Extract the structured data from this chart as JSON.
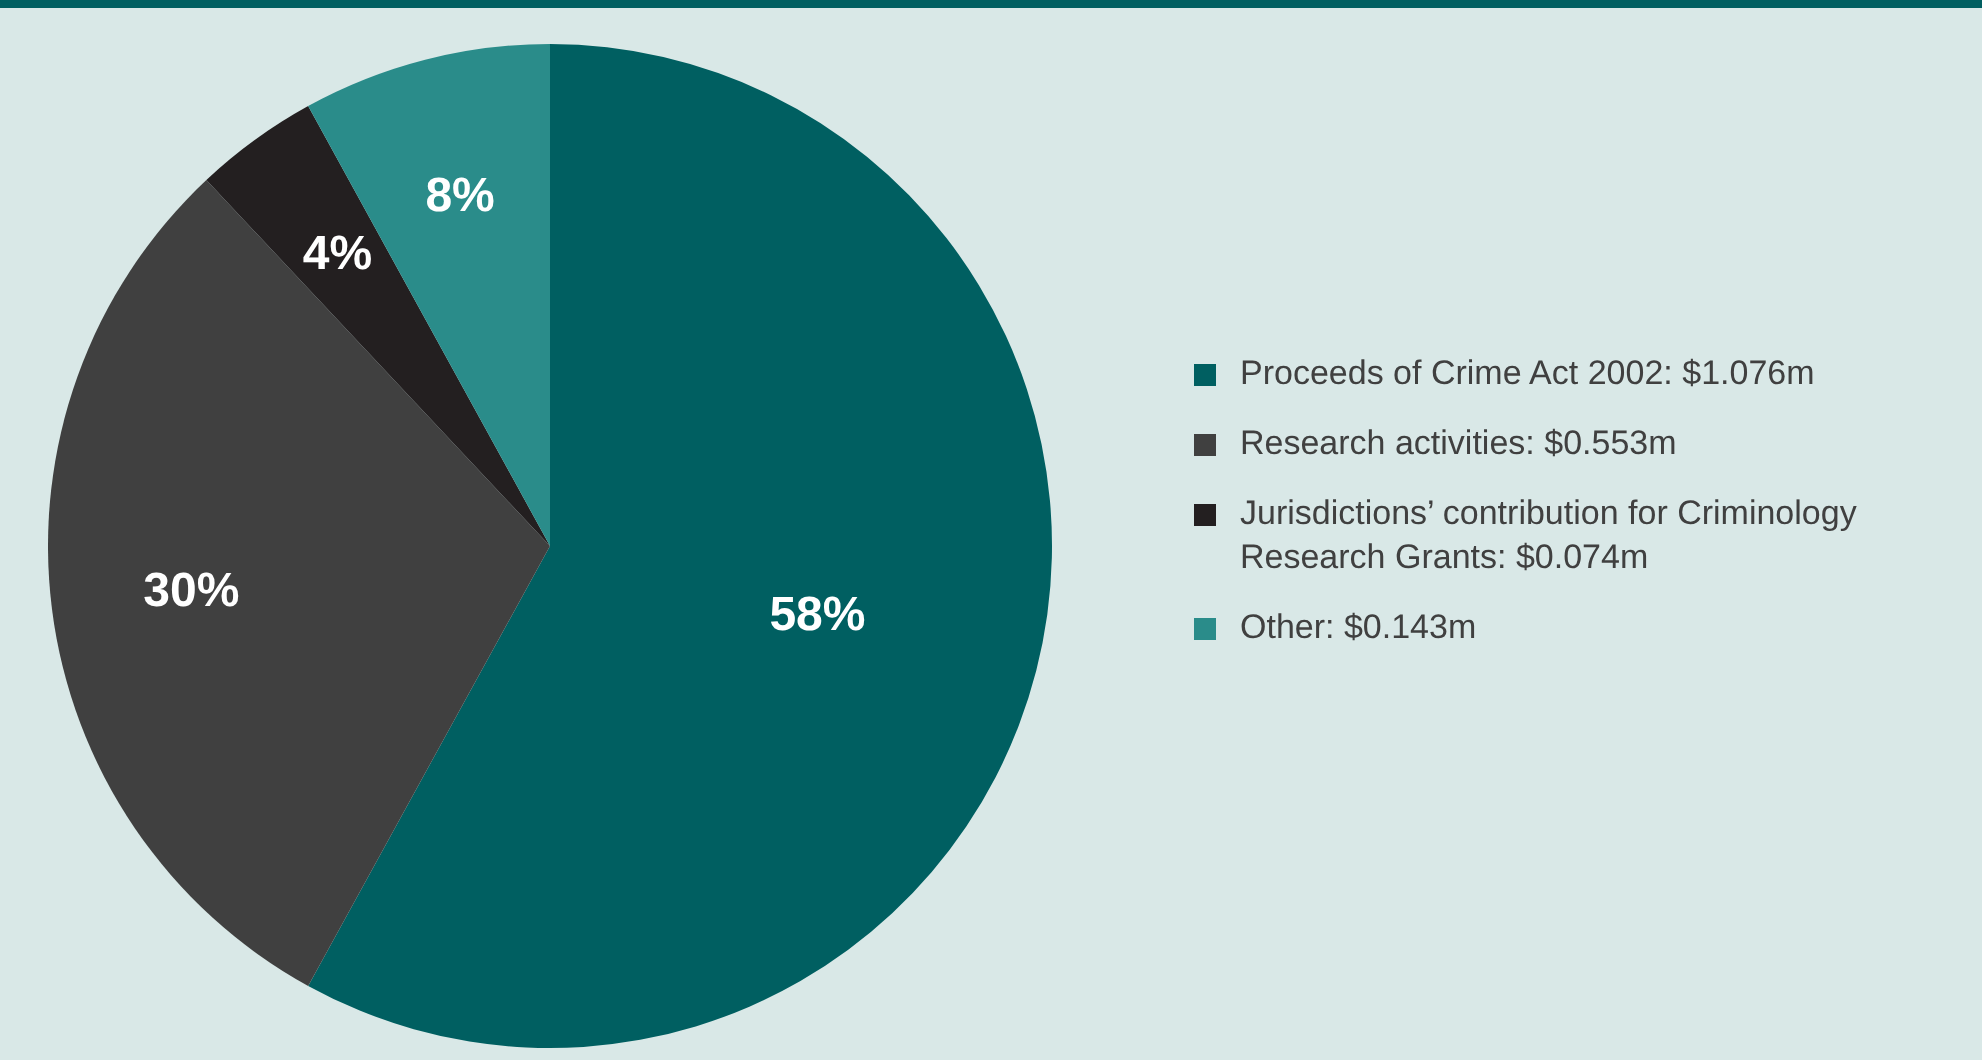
{
  "chart_data": {
    "type": "pie",
    "categories": [
      "Proceeds of Crime Act 2002: $1.076m",
      "Research activities: $0.553m",
      "Jurisdictions’ contribution for Criminology Research Grants: $0.074m",
      "Other: $0.143m"
    ],
    "values": [
      58,
      30,
      4,
      8
    ],
    "colors": [
      "#005f61",
      "#404040",
      "#231f20",
      "#2a8c8a"
    ],
    "value_labels": [
      "58%",
      "30%",
      "4%",
      "8%"
    ],
    "legend": "right"
  }
}
